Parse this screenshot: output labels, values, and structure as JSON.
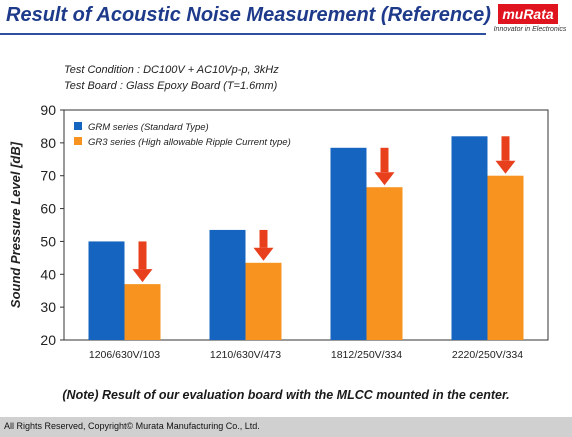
{
  "header": {
    "title": "Result of Acoustic Noise Measurement (Reference)",
    "logo_text": "muRata",
    "logo_tagline": "Innovator in Electronics",
    "brand_color": "#e0141f"
  },
  "conditions": {
    "line1": "Test Condition  :  DC100V + AC10Vp-p, 3kHz",
    "line2": "Test Board  :  Glass Epoxy Board (T=1.6mm)"
  },
  "chart_data": {
    "type": "bar",
    "title": "",
    "xlabel": "",
    "ylabel": "Sound Pressure Level [dB]",
    "ylim": [
      20,
      90
    ],
    "yticks": [
      20,
      30,
      40,
      50,
      60,
      70,
      80,
      90
    ],
    "grid": false,
    "legend_position": "top-left",
    "categories": [
      "1206/630V/103",
      "1210/630V/473",
      "1812/250V/334",
      "2220/250V/334"
    ],
    "series": [
      {
        "name": "GRM series (Standard Type)",
        "color": "#1565c0",
        "values": [
          50,
          53.5,
          78.5,
          82
        ]
      },
      {
        "name": "GR3 series (High allowable Ripple Current type)",
        "color": "#f7931e",
        "values": [
          37,
          43.5,
          66.5,
          70
        ]
      }
    ],
    "arrows": {
      "color": "#e8401c",
      "count": 4,
      "meaning": "reduction from GRM to GR3"
    }
  },
  "note": "(Note) Result of our evaluation board  with the MLCC mounted  in the center.",
  "footer": {
    "copyright": "All Rights Reserved, Copyright©  Murata Manufacturing Co., Ltd."
  }
}
